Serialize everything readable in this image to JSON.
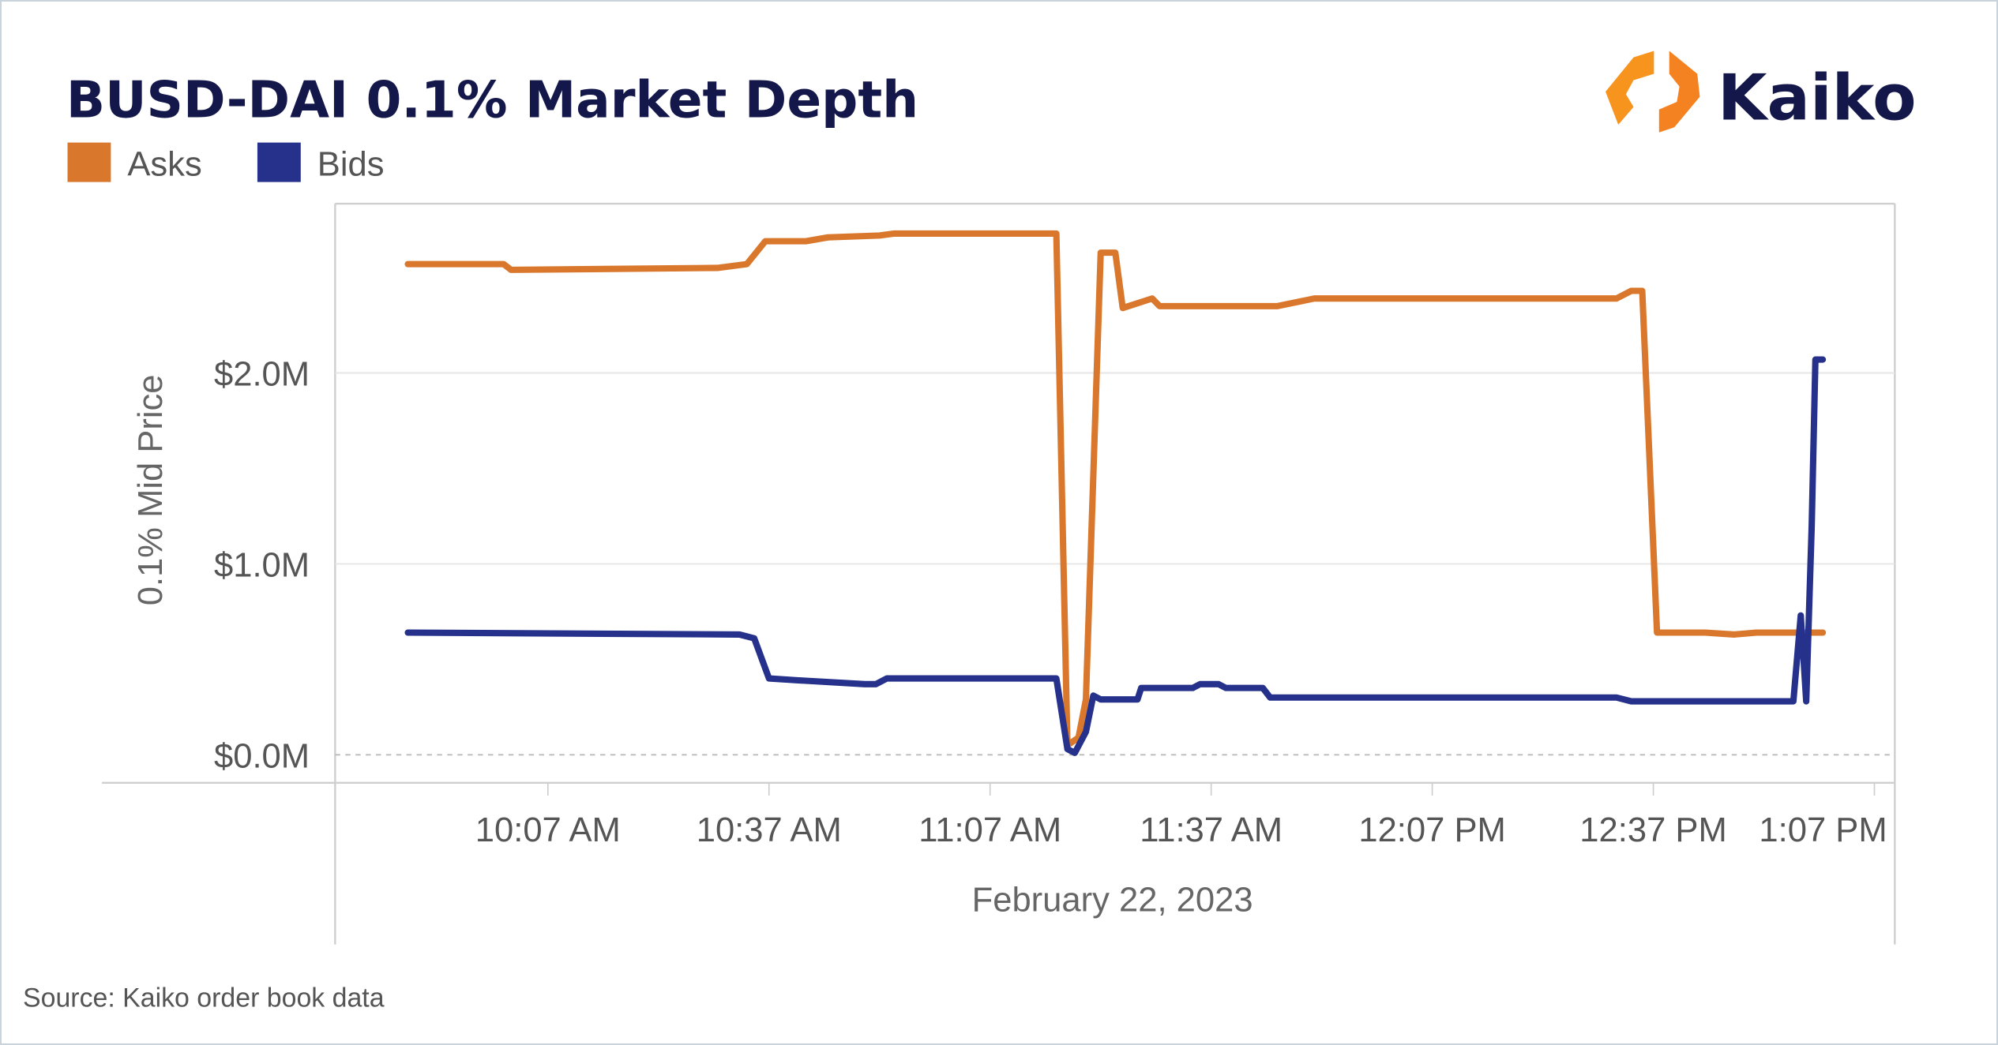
{
  "header": {
    "title": "BUSD-DAI 0.1% Market Depth",
    "logo_text": "Kaiko"
  },
  "footer": {
    "source": "Source: Kaiko order book data"
  },
  "colors": {
    "asks": "#d9782d",
    "bids": "#25318a",
    "title": "#14174a",
    "logo_orange": "#f7941d"
  },
  "chart_data": {
    "type": "line",
    "title": "BUSD-DAI 0.1% Market Depth",
    "xlabel": "February 22, 2023",
    "ylabel": "0.1% Mid Price",
    "legend": [
      "Asks",
      "Bids"
    ],
    "legend_placement": "top-left",
    "grid": true,
    "y_unit": "USD millions",
    "ylim": [
      0,
      2.9
    ],
    "y_ticks": [
      {
        "value": 0,
        "label": "$0.0M"
      },
      {
        "value": 1,
        "label": "$1.0M"
      },
      {
        "value": 2,
        "label": "$2.0M"
      }
    ],
    "x_ticks": [
      {
        "time": "10:07",
        "label": "10:07 AM"
      },
      {
        "time": "10:37",
        "label": "10:37 AM"
      },
      {
        "time": "11:07",
        "label": "11:07 AM"
      },
      {
        "time": "11:37",
        "label": "11:37 AM"
      },
      {
        "time": "12:07",
        "label": "12:07 PM"
      },
      {
        "time": "12:37",
        "label": "12:37 PM"
      },
      {
        "time": "13:07",
        "label": "1:07 PM"
      }
    ],
    "series": [
      {
        "name": "Asks",
        "color": "#d9782d",
        "points": [
          [
            "09:48:00",
            2.57
          ],
          [
            "10:01:00",
            2.57
          ],
          [
            "10:02:00",
            2.54
          ],
          [
            "10:30:00",
            2.55
          ],
          [
            "10:34:00",
            2.57
          ],
          [
            "10:36:30",
            2.69
          ],
          [
            "10:42:00",
            2.69
          ],
          [
            "10:45:00",
            2.71
          ],
          [
            "10:52:00",
            2.72
          ],
          [
            "10:54:00",
            2.73
          ],
          [
            "11:16:00",
            2.73
          ],
          [
            "11:17:30",
            0.05
          ],
          [
            "11:19:00",
            0.09
          ],
          [
            "11:20:00",
            0.29
          ],
          [
            "11:22:00",
            2.63
          ],
          [
            "11:24:00",
            2.63
          ],
          [
            "11:25:00",
            2.34
          ],
          [
            "11:29:00",
            2.39
          ],
          [
            "11:30:00",
            2.35
          ],
          [
            "11:46:00",
            2.35
          ],
          [
            "11:51:00",
            2.39
          ],
          [
            "12:32:00",
            2.39
          ],
          [
            "12:34:00",
            2.43
          ],
          [
            "12:35:30",
            2.43
          ],
          [
            "12:37:30",
            0.64
          ],
          [
            "12:44:00",
            0.64
          ],
          [
            "12:48:00",
            0.63
          ],
          [
            "12:51:00",
            0.64
          ],
          [
            "13:00:00",
            0.64
          ]
        ]
      },
      {
        "name": "Bids",
        "color": "#25318a",
        "points": [
          [
            "09:48:00",
            0.64
          ],
          [
            "10:33:00",
            0.63
          ],
          [
            "10:35:00",
            0.61
          ],
          [
            "10:37:00",
            0.4
          ],
          [
            "10:41:00",
            0.39
          ],
          [
            "10:50:00",
            0.37
          ],
          [
            "10:51:30",
            0.37
          ],
          [
            "10:53:00",
            0.4
          ],
          [
            "11:16:00",
            0.4
          ],
          [
            "11:17:30",
            0.03
          ],
          [
            "11:18:30",
            0.01
          ],
          [
            "11:20:00",
            0.12
          ],
          [
            "11:21:00",
            0.31
          ],
          [
            "11:22:00",
            0.29
          ],
          [
            "11:27:00",
            0.29
          ],
          [
            "11:27:30",
            0.35
          ],
          [
            "11:34:30",
            0.35
          ],
          [
            "11:35:30",
            0.37
          ],
          [
            "11:38:00",
            0.37
          ],
          [
            "11:39:00",
            0.35
          ],
          [
            "11:44:00",
            0.35
          ],
          [
            "11:45:00",
            0.3
          ],
          [
            "12:32:00",
            0.3
          ],
          [
            "12:34:00",
            0.28
          ],
          [
            "12:56:00",
            0.28
          ],
          [
            "12:57:00",
            0.73
          ],
          [
            "12:57:45",
            0.28
          ],
          [
            "12:58:30",
            1.2
          ],
          [
            "12:59:00",
            2.07
          ],
          [
            "13:00:00",
            2.07
          ]
        ]
      }
    ]
  }
}
